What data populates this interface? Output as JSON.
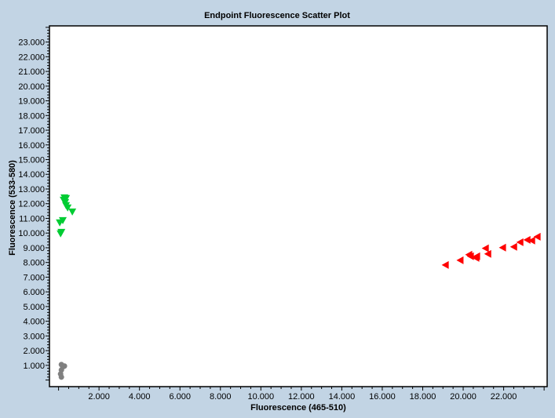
{
  "chart_data": {
    "type": "scatter",
    "title": "Endpoint Fluorescence Scatter Plot",
    "xlabel": "Fluorescence (465-510)",
    "ylabel": "Fluorescence (533-580)",
    "xlim": [
      -450,
      24150
    ],
    "ylim": [
      -450,
      24100
    ],
    "xticks": [
      2000,
      4000,
      6000,
      8000,
      10000,
      12000,
      14000,
      16000,
      18000,
      20000,
      22000
    ],
    "xtick_labels": [
      "2.000",
      "4.000",
      "6.000",
      "8.000",
      "10.000",
      "12.000",
      "14.000",
      "16.000",
      "18.000",
      "20.000",
      "22.000"
    ],
    "yticks": [
      1000,
      2000,
      3000,
      4000,
      5000,
      6000,
      7000,
      8000,
      9000,
      10000,
      11000,
      12000,
      13000,
      14000,
      15000,
      16000,
      17000,
      18000,
      19000,
      20000,
      21000,
      22000,
      23000
    ],
    "ytick_labels": [
      "1.000",
      "2.000",
      "3.000",
      "4.000",
      "5.000",
      "6.000",
      "7.000",
      "8.000",
      "9.000",
      "10.000",
      "11.000",
      "12.000",
      "13.000",
      "14.000",
      "15.000",
      "16.000",
      "17.000",
      "18.000",
      "19.000",
      "20.000",
      "21.000",
      "22.000",
      "23.000"
    ],
    "grid": false,
    "series": [
      {
        "name": "green",
        "color": "#00cc33",
        "marker": "triangle-down",
        "x": [
          290,
          330,
          370,
          450,
          680,
          60,
          210,
          140,
          100,
          370,
          250
        ],
        "y": [
          12420,
          12100,
          11890,
          11730,
          11460,
          10720,
          10870,
          10070,
          9970,
          12370,
          12260
        ]
      },
      {
        "name": "red",
        "color": "#ff0000",
        "marker": "triangle-left",
        "x": [
          19130,
          19860,
          20290,
          20370,
          20640,
          20680,
          21110,
          21230,
          21960,
          22510,
          22820,
          23170,
          23400,
          23670
        ],
        "y": [
          7830,
          8150,
          8530,
          8420,
          8310,
          8420,
          8960,
          8580,
          9010,
          9060,
          9380,
          9540,
          9490,
          9750
        ]
      },
      {
        "name": "gray",
        "color": "#808080",
        "marker": "circle",
        "x": [
          140,
          210,
          290,
          140,
          100,
          140
        ],
        "y": [
          1050,
          890,
          950,
          680,
          410,
          200
        ]
      }
    ]
  }
}
